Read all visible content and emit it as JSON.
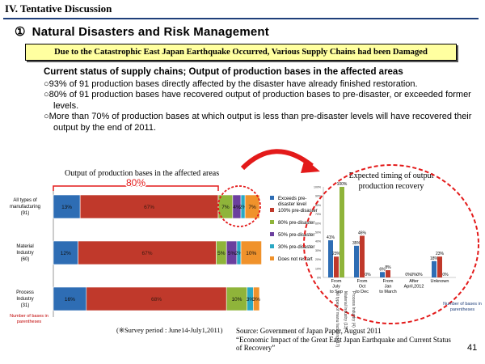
{
  "header": {
    "section": "IV. Tentative Discussion",
    "title_number": "①",
    "title": "Natural  Disasters and Risk Management"
  },
  "banner": "Due to the Catastrophic East Japan Earthquake Occurred, Various Supply Chains had been Damaged",
  "status": {
    "heading": "Current status of supply chains; Output of production bases in the affected areas",
    "bullets": [
      "○93% of 91 production bases directly affected by the disaster have already finished  restoration.",
      "○80% of 91 production bases have recovered output of production bases to pre-disaster, or exceeded former levels.",
      "○More than 70% of production bases at which output is less than pre-disaster levels  will have recovered their output by the end of 2011."
    ]
  },
  "colors": {
    "exceeds": "#2e6db4",
    "pct100": "#c0392b",
    "pct80": "#8fb43a",
    "pct50": "#6b3f9e",
    "pct30": "#2aa8c4",
    "not_restart": "#f0922b",
    "highlight": "#e31a1a"
  },
  "chart_data": [
    {
      "type": "bar",
      "orientation": "horizontal",
      "stacked": true,
      "title": "Output of production bases in the affected areas",
      "annotation": "80%",
      "categories": [
        "All types of manufacturing (91)",
        "Material Industry (60)",
        "Process Industry (31)"
      ],
      "category_lines": [
        [
          "All types of",
          "manufacturing",
          "(91)"
        ],
        [
          "Material",
          "Industry",
          "(60)"
        ],
        [
          "Process",
          "Industry",
          "(31)"
        ]
      ],
      "series": [
        {
          "name": "Exceeds pre-disaster level",
          "color": "#2e6db4",
          "values": [
            13,
            12,
            16
          ],
          "labels": [
            "13%",
            "12%",
            "16%"
          ]
        },
        {
          "name": "100% pre-disaster",
          "color": "#c0392b",
          "values": [
            67,
            67,
            68
          ],
          "labels": [
            "67%",
            "67%",
            "68%"
          ]
        },
        {
          "name": "80% pre-disaster",
          "color": "#8fb43a",
          "values": [
            7,
            5,
            10
          ],
          "labels": [
            "7%",
            "5%",
            "10%"
          ]
        },
        {
          "name": "50% pre-disaster",
          "color": "#6b3f9e",
          "values": [
            4,
            5,
            0
          ],
          "labels": [
            "4%",
            "5%",
            ""
          ]
        },
        {
          "name": "30% pre-disaster",
          "color": "#2aa8c4",
          "values": [
            2,
            2,
            3
          ],
          "labels": [
            "2%",
            "2%",
            "3%"
          ]
        },
        {
          "name": "Does  not  restart",
          "color": "#f0922b",
          "values": [
            7,
            10,
            3
          ],
          "labels": [
            "7%",
            "10%",
            "3%"
          ]
        }
      ],
      "legend": [
        "Exceeds pre-disaster level",
        "100% pre-disaster",
        "80% pre-disaster",
        "50% pre-disaster",
        "30% pre-disaster",
        "Does  not  restart"
      ],
      "note": "Number of bases in parentheses",
      "survey": "(※Survey period : June14-July1,2011)"
    },
    {
      "type": "bar",
      "title": "Expected timing of output production recovery",
      "categories": [
        "From July to Sep",
        "From Oct to Dec",
        "From Jan to March",
        "After April,2012",
        "Unknown"
      ],
      "category_lines": [
        [
          "From",
          "July",
          "to Sep"
        ],
        [
          "From",
          "Oct",
          "to Dec"
        ],
        [
          "From",
          "Jan",
          "to March"
        ],
        [
          "After",
          "April,2012",
          ""
        ],
        [
          "Unknown",
          "",
          ""
        ]
      ],
      "ylim": [
        0,
        100
      ],
      "y_ticks": [
        "100%",
        "90%",
        "80%",
        "70%",
        "60%",
        "50%",
        "40%",
        "30%",
        "20%",
        "10%",
        "0%"
      ],
      "series": [
        {
          "name": "All types of manufacturing (17)",
          "color": "#2e6db4",
          "values": [
            41,
            35,
            6,
            0,
            18
          ],
          "labels": [
            "41%",
            "35%",
            "6%",
            "0%",
            "18%"
          ]
        },
        {
          "name": "Material Industry (13)",
          "color": "#c0392b",
          "values": [
            23,
            46,
            8,
            0,
            23
          ],
          "labels": [
            "23%",
            "46%",
            "8%",
            "0%",
            "23%"
          ]
        },
        {
          "name": "Process Industry (4)",
          "color": "#8fb43a",
          "values": [
            100,
            0,
            0,
            0,
            0
          ],
          "labels": [
            "100%",
            "0%",
            "",
            "0%",
            "0%"
          ]
        }
      ],
      "series_axis_labels": [
        "All types of manu facturing (17)",
        "Material Industry (13)",
        "Process Industry (4)"
      ],
      "note": "Number of bases in parentheses"
    }
  ],
  "source": {
    "line1": "Source: Government of Japan Paper, August 2011",
    "line2": "“Economic Impact of the Great East Japan Earthquake and Current Status of Recovery”"
  },
  "page_number": "41"
}
